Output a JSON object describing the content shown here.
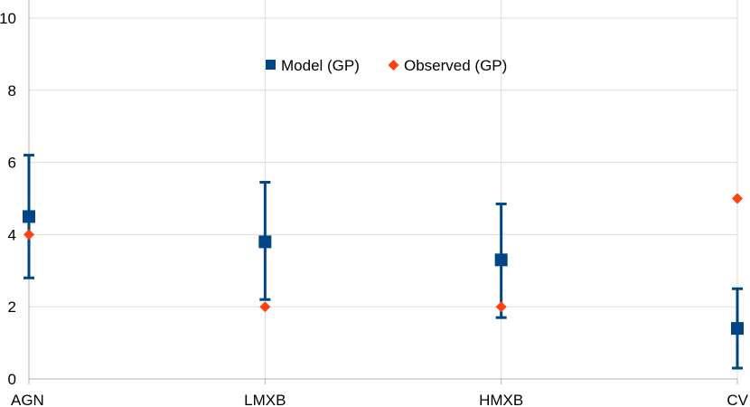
{
  "chart_data": {
    "type": "scatter",
    "categories": [
      "AGN",
      "LMXB",
      "HMXB",
      "CV"
    ],
    "ylim": [
      0,
      10.5
    ],
    "yticks": [
      0,
      2,
      4,
      6,
      8,
      10
    ],
    "grid": true,
    "legend_position": "top-center",
    "series": [
      {
        "name": "Model (GP)",
        "marker": "square",
        "color": "#004586",
        "values": [
          4.5,
          3.8,
          3.3,
          1.4
        ],
        "err_low": [
          2.8,
          2.2,
          1.7,
          0.3
        ],
        "err_high": [
          6.2,
          5.45,
          4.85,
          2.5
        ]
      },
      {
        "name": "Observed (GP)",
        "marker": "diamond",
        "color": "#ff420e",
        "values": [
          4,
          2,
          2,
          5
        ]
      }
    ]
  }
}
